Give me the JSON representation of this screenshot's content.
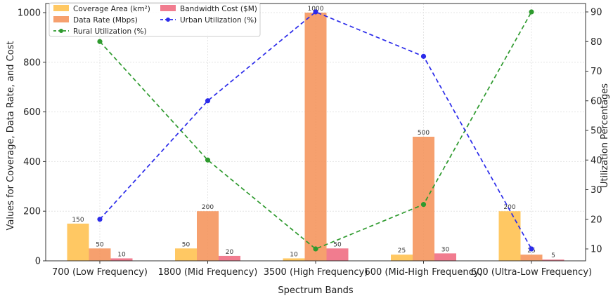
{
  "chart_data": {
    "type": "bar",
    "categories": [
      "700 (Low Frequency)",
      "1800 (Mid Frequency)",
      "3500 (High Frequency)",
      "600 (Mid-High Frequency)",
      "600 (Ultra-Low Frequency)"
    ],
    "series": [
      {
        "name": "Coverage Area (km²)",
        "values": [
          150,
          50,
          10,
          25,
          200
        ],
        "color": "#ffc04d",
        "axis": "left",
        "kind": "bar"
      },
      {
        "name": "Data Rate (Mbps)",
        "values": [
          50,
          200,
          1000,
          500,
          25
        ],
        "color": "#f5935a",
        "axis": "left",
        "kind": "bar"
      },
      {
        "name": "Bandwidth Cost ($M)",
        "values": [
          10,
          20,
          50,
          30,
          5
        ],
        "color": "#ef6a80",
        "axis": "left",
        "kind": "bar"
      },
      {
        "name": "Rural Utilization (%)",
        "values": [
          80,
          40,
          10,
          25,
          90
        ],
        "color": "#2e9a2e",
        "axis": "right",
        "kind": "line"
      },
      {
        "name": "Urban Utilization (%)",
        "values": [
          20,
          60,
          90,
          75,
          10
        ],
        "color": "#2b2bea",
        "axis": "right",
        "kind": "line"
      }
    ],
    "xlabel": "Spectrum Bands",
    "ylabel": "Values for Coverage, Data Rate, and Cost",
    "y2label": "Utilization Percentages",
    "ylim": [
      0,
      1000
    ],
    "yticks": [
      0,
      200,
      400,
      600,
      800,
      1000
    ],
    "y2lim": [
      6.4,
      91.5
    ],
    "y2ticks": [
      10,
      20,
      30,
      40,
      50,
      60,
      70,
      80,
      90
    ],
    "grid": true,
    "legend_position": "top-left"
  }
}
